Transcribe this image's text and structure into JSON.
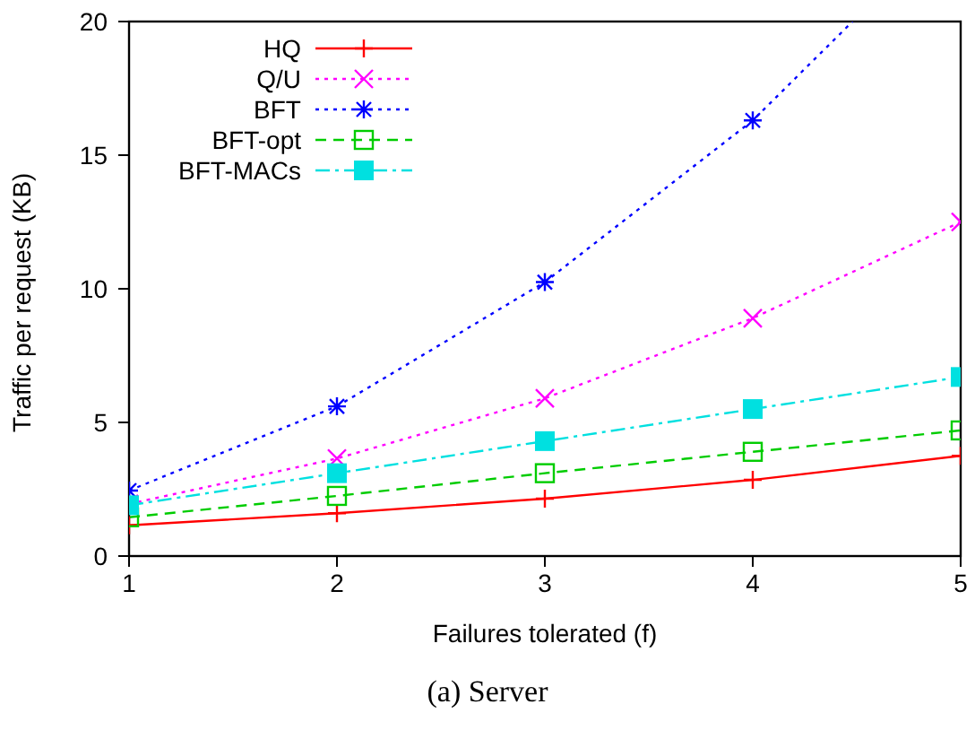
{
  "chart_data": {
    "type": "line",
    "xlabel": "Failures tolerated (f)",
    "ylabel": "Traffic per request (KB)",
    "annotations": [
      "(a)  Server"
    ],
    "x": [
      1,
      2,
      3,
      4,
      5
    ],
    "xlim": [
      1,
      5
    ],
    "xticks": [
      1,
      2,
      3,
      4,
      5
    ],
    "ylim": [
      0,
      20
    ],
    "yticks": [
      0,
      5,
      10,
      15,
      20
    ],
    "legend": "top left",
    "series": [
      {
        "name": "HQ",
        "color": "#ff0000",
        "marker": "cross",
        "line_style": "solid",
        "values": [
          1.15,
          1.6,
          2.15,
          2.85,
          3.75
        ]
      },
      {
        "name": "Q/U",
        "color": "#ff00ff",
        "marker": "x",
        "line_style": "dotted",
        "values": [
          1.95,
          3.65,
          5.9,
          8.9,
          12.5
        ]
      },
      {
        "name": "BFT",
        "color": "#0000ff",
        "marker": "cross",
        "line_style": "dotted",
        "x": [
          1,
          2,
          3,
          4,
          4.48
        ],
        "values": [
          2.45,
          5.6,
          10.25,
          16.3,
          20
        ]
      },
      {
        "name": "BFT-opt",
        "color": "#00cc00",
        "marker": "square",
        "line_style": "dashed",
        "values": [
          1.45,
          2.25,
          3.1,
          3.9,
          4.7
        ]
      },
      {
        "name": "BFT-MACs",
        "color": "#00e0e0",
        "marker": "square",
        "line_style": "dashdot",
        "values": [
          1.9,
          3.1,
          4.3,
          5.5,
          6.7
        ]
      }
    ]
  }
}
